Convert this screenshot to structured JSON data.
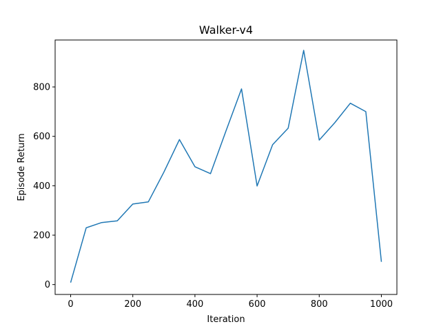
{
  "chart_data": {
    "type": "line",
    "title": "Walker-v4",
    "xlabel": "Iteration",
    "ylabel": "Episode Return",
    "xlim": [
      -50,
      1050
    ],
    "ylim": [
      -40,
      990
    ],
    "xticks": [
      0,
      200,
      400,
      600,
      800,
      1000
    ],
    "yticks": [
      0,
      200,
      400,
      600,
      800
    ],
    "grid": false,
    "series": [
      {
        "color": "#1f77b4",
        "x": [
          0,
          50,
          100,
          150,
          200,
          250,
          300,
          350,
          400,
          450,
          500,
          550,
          600,
          650,
          700,
          750,
          800,
          850,
          900,
          950,
          1000
        ],
        "y": [
          8,
          230,
          251,
          258,
          326,
          335,
          455,
          587,
          477,
          449,
          622,
          792,
          399,
          566,
          633,
          948,
          585,
          655,
          734,
          700,
          92
        ]
      }
    ]
  }
}
